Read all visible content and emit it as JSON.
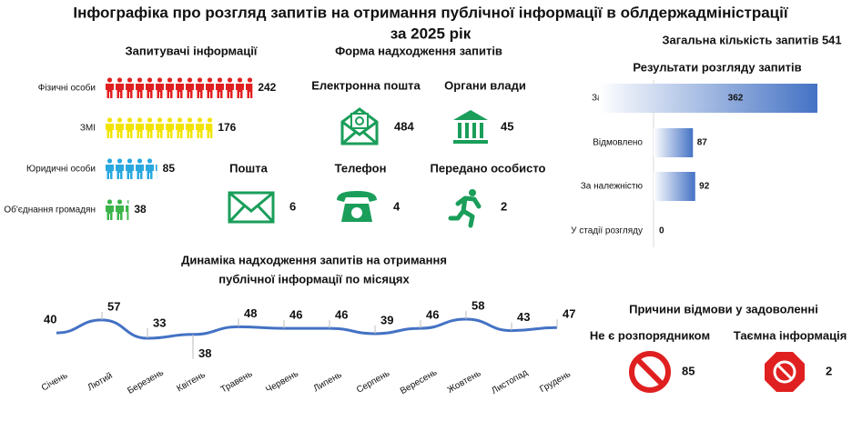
{
  "title": "Інфографіка про розгляд запитів на отримання публічної інформації в облдержадміністрації",
  "subtitle": "за 2025 рік",
  "chart_data": [
    {
      "type": "pictograph",
      "title": "Запитувачі інформації",
      "categories": [
        "Фізичні особи",
        "ЗМІ",
        "Юридичні особи",
        "Об'єднання громадян"
      ],
      "values": [
        242,
        176,
        85,
        38
      ],
      "colors": [
        "#e02020",
        "#f2e400",
        "#29a8e0",
        "#3cb44b"
      ]
    },
    {
      "type": "icons",
      "title": "Форма надходження запитів",
      "color": "#1a9e5a",
      "categories": [
        "Електронна пошта",
        "Органи влади",
        "Пошта",
        "Телефон",
        "Передано особисто"
      ],
      "values": [
        484,
        45,
        6,
        4,
        2
      ]
    },
    {
      "type": "bar",
      "total": "Загальна кількість запитів 541",
      "title": "Результати розгляду запитів",
      "color": "#4472c4",
      "categories": [
        "Задоволено",
        "Відмовлено",
        "За належністю",
        "У стадії розгляду"
      ],
      "values": [
        362,
        87,
        92,
        0
      ]
    },
    {
      "type": "line",
      "title": [
        "Динаміка надходження запитів на отримання",
        "публічної інформації по місяцях"
      ],
      "color": "#4472c4",
      "categories": [
        "Січень",
        "Лютий",
        "Березень",
        "Квітень",
        "Травень",
        "Червень",
        "Липень",
        "Серпень",
        "Вересень",
        "Жовтень",
        "Листопад",
        "Грудень"
      ],
      "values": [
        40,
        57,
        33,
        38,
        48,
        46,
        46,
        39,
        46,
        58,
        43,
        47
      ]
    },
    {
      "type": "icons",
      "title": "Причини відмови у задоволенні",
      "color": "#e02020",
      "categories": [
        "Не є розпорядником",
        "Таємна інформація"
      ],
      "values": [
        85,
        2
      ]
    }
  ]
}
